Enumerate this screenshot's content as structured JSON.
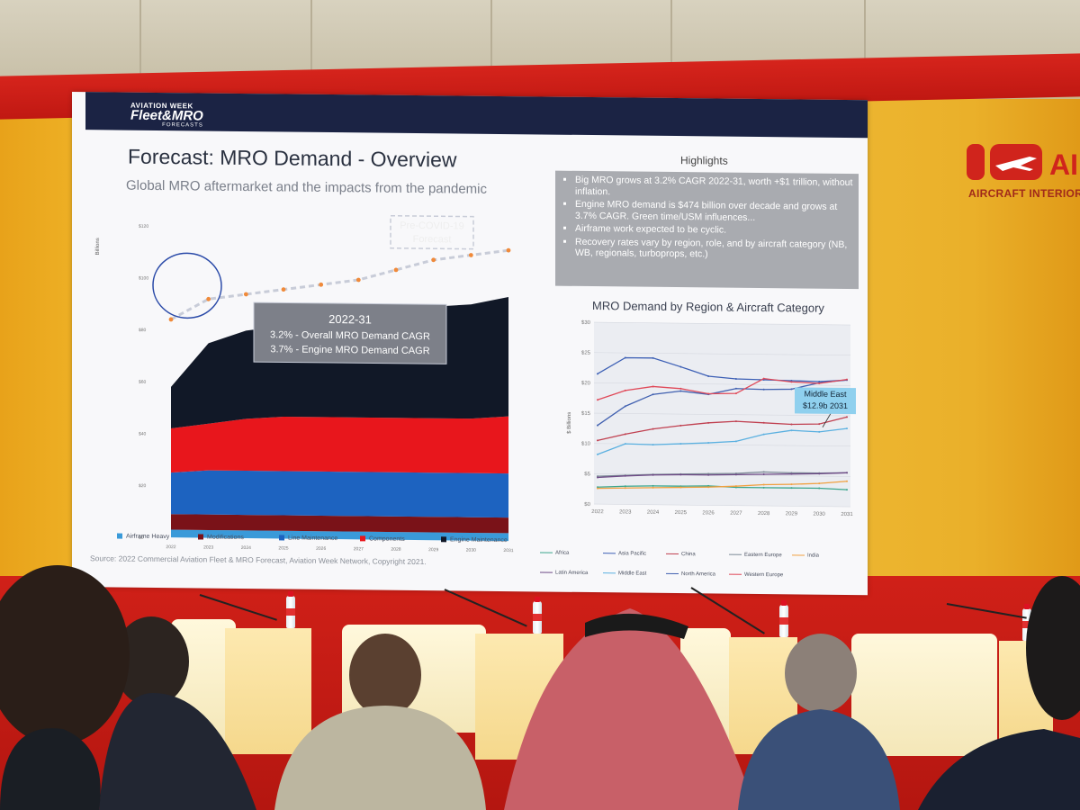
{
  "venue": {
    "brand_short": "AI",
    "brand_tagline": "AIRCRAFT INTERIORS M"
  },
  "slide": {
    "logo_top": "AVIATION WEEK",
    "logo_main": "Fleet&MRO",
    "logo_sub": "FORECASTS",
    "title": "Forecast: MRO Demand - Overview",
    "subtitle": "Global MRO aftermarket and the impacts from the pandemic",
    "highlights_title": "Highlights",
    "highlights": [
      "Big MRO grows at 3.2% CAGR 2022-31, worth +$1 trillion, without inflation.",
      "Engine MRO demand is $474 billion over decade and grows at 3.7% CAGR. Green time/USM influences...",
      "Airframe work expected to be cyclic.",
      "Recovery rates vary by region, role, and by aircraft category (NB, WB, regionals, turboprops, etc.)"
    ],
    "source": "Source: 2022 Commercial Aviation Fleet & MRO Forecast, Aviation Week Network, Copyright 2021."
  },
  "chart_data": [
    {
      "type": "area",
      "stacked": true,
      "ylabel": "Billions",
      "ylim": [
        0,
        120
      ],
      "yticks": [
        "$0",
        "$20",
        "$40",
        "$60",
        "$80",
        "$100",
        "$120"
      ],
      "categories": [
        "2022",
        "2023",
        "2024",
        "2025",
        "2026",
        "2027",
        "2028",
        "2029",
        "2030",
        "2031"
      ],
      "series": [
        {
          "name": "Airframe Heavy",
          "color": "#3a9ad9",
          "values": [
            3,
            3,
            3,
            3,
            3,
            3,
            3,
            3,
            3,
            3
          ]
        },
        {
          "name": "Modifications",
          "color": "#7a1218",
          "values": [
            6,
            6,
            6,
            6,
            6,
            6,
            6,
            6,
            6,
            6
          ]
        },
        {
          "name": "Line Maintenance",
          "color": "#1d63c0",
          "values": [
            16,
            17,
            17,
            17,
            17,
            17,
            17,
            17,
            17,
            17
          ]
        },
        {
          "name": "Components",
          "color": "#e8161c",
          "values": [
            17,
            18,
            20,
            21,
            21,
            21,
            21,
            21,
            21,
            22
          ]
        },
        {
          "name": "Engine Maintenance",
          "color": "#111827",
          "values": [
            16,
            31,
            34,
            35,
            36,
            38,
            41,
            43,
            44,
            46
          ]
        }
      ],
      "forecast_line": {
        "name": "Pre-COVID-19 Forecast",
        "values": [
          84,
          92,
          94,
          96,
          98,
          100,
          104,
          108,
          110,
          112
        ]
      },
      "annotations": {
        "forecast_label_1": "Pre-COVID-19",
        "forecast_label_2": "Forecast",
        "box_title": "2022-31",
        "box_line1": "3.2% - Overall MRO Demand CAGR",
        "box_line2": "3.7% - Engine MRO Demand CAGR"
      }
    },
    {
      "type": "line",
      "title": "MRO Demand by Region & Aircraft Category",
      "ylabel": "$ Billions",
      "ylim": [
        0,
        30
      ],
      "yticks": [
        "$0",
        "$5",
        "$10",
        "$15",
        "$20",
        "$25",
        "$30"
      ],
      "categories": [
        "2022",
        "2023",
        "2024",
        "2025",
        "2026",
        "2027",
        "2028",
        "2029",
        "2030",
        "2031"
      ],
      "series": [
        {
          "name": "Africa",
          "color": "#3aa58c",
          "values": [
            2.8,
            3.0,
            3.1,
            3.1,
            3.2,
            3.0,
            3.0,
            3.0,
            3.0,
            2.8
          ]
        },
        {
          "name": "Asia Pacific",
          "color": "#3c5fb5",
          "values": [
            21.5,
            24.2,
            24.2,
            22.8,
            21.3,
            20.9,
            20.8,
            20.7,
            20.6,
            20.9
          ]
        },
        {
          "name": "China",
          "color": "#c04050",
          "values": [
            10.5,
            11.6,
            12.5,
            13.1,
            13.6,
            13.9,
            13.7,
            13.5,
            13.6,
            14.8
          ]
        },
        {
          "name": "Eastern Europe",
          "color": "#7c8a96",
          "values": [
            4.6,
            4.8,
            5.0,
            5.1,
            5.2,
            5.3,
            5.6,
            5.5,
            5.5,
            5.6
          ]
        },
        {
          "name": "India",
          "color": "#f0a040",
          "values": [
            2.6,
            2.7,
            2.8,
            2.9,
            3.0,
            3.2,
            3.5,
            3.6,
            3.8,
            4.2
          ]
        },
        {
          "name": "Latin America",
          "color": "#6e4a86",
          "values": [
            4.4,
            4.7,
            4.9,
            5.0,
            5.0,
            5.1,
            5.2,
            5.3,
            5.4,
            5.6
          ]
        },
        {
          "name": "Middle East",
          "color": "#5ab0e0",
          "values": [
            8.2,
            10.0,
            9.9,
            10.1,
            10.3,
            10.6,
            11.8,
            12.5,
            12.3,
            12.9
          ]
        },
        {
          "name": "North America",
          "color": "#4060b0",
          "values": [
            13.0,
            16.2,
            18.2,
            18.8,
            18.3,
            19.3,
            19.2,
            19.3,
            20.4,
            20.9
          ]
        },
        {
          "name": "Western Europe",
          "color": "#e04858",
          "values": [
            17.2,
            18.8,
            19.5,
            19.2,
            18.4,
            18.5,
            21.0,
            20.5,
            20.3,
            21.0
          ]
        }
      ],
      "callout_line1": "Middle East",
      "callout_line2": "$12.9b 2031"
    }
  ]
}
